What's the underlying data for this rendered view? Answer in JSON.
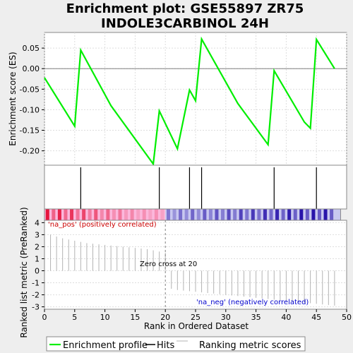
{
  "chart_data": {
    "type": "line",
    "title_lines": [
      "Enrichment plot: GSE55897 ZR75",
      "INDOLE3CARBINOL 24H"
    ],
    "es_panel": {
      "ylabel": "Enrichment score (ES)",
      "yticks": [
        0.05,
        0.0,
        -0.05,
        -0.1,
        -0.15,
        -0.2
      ],
      "ytick_labels": [
        "0.05",
        "0.00",
        "-0.05",
        "-0.10",
        "-0.15",
        "-0.20"
      ],
      "ylim": [
        -0.235,
        0.088
      ],
      "xlim": [
        0,
        50
      ],
      "line_color": "#00ee00",
      "x": [
        0,
        5,
        6,
        11,
        18,
        19,
        22,
        24,
        25,
        26,
        32,
        37,
        38,
        43,
        44,
        45,
        48
      ],
      "y": [
        -0.022,
        -0.14,
        0.045,
        -0.09,
        -0.232,
        -0.103,
        -0.195,
        -0.052,
        -0.078,
        0.072,
        -0.085,
        -0.185,
        -0.005,
        -0.13,
        -0.145,
        0.071,
        0.0
      ]
    },
    "hits": {
      "color": "#000000",
      "positions": [
        6,
        19,
        24,
        26,
        38,
        45
      ]
    },
    "metric_panel": {
      "ylabel": "Ranked list metric (PreRanked)",
      "yticks": [
        4,
        3,
        2,
        1,
        0,
        -1,
        -2,
        -3
      ],
      "ytick_labels": [
        "4",
        "3",
        "2",
        "1",
        "0",
        "-1",
        "-2",
        "-3"
      ],
      "ylim": [
        -3.2,
        4.2
      ],
      "xlabel": "Rank in Ordered Dataset",
      "xticks": [
        0,
        5,
        10,
        15,
        20,
        25,
        30,
        35,
        40,
        45,
        50
      ],
      "xtick_labels": [
        "0",
        "5",
        "10",
        "15",
        "20",
        "25",
        "30",
        "35",
        "40",
        "45",
        "50"
      ],
      "bar_color": "#b3b3b3",
      "values": [
        3.0,
        2.85,
        2.7,
        2.6,
        2.5,
        2.4,
        2.3,
        2.25,
        2.2,
        2.15,
        2.1,
        2.05,
        2.0,
        1.95,
        1.9,
        1.85,
        1.8,
        1.7,
        1.6,
        1.5,
        -1.5,
        -1.6,
        -1.65,
        -1.7,
        -1.75,
        -1.8,
        -1.85,
        -1.9,
        -1.95,
        -2.0,
        -2.05,
        -2.1,
        -2.15,
        -2.2,
        -2.25,
        -2.3,
        -2.35,
        -2.4,
        -2.45,
        -2.5,
        -2.55,
        -2.6,
        -2.65,
        -2.7,
        -2.75,
        -2.8,
        -2.85,
        -2.9
      ],
      "zero_cross": 20,
      "zero_cross_label": "Zero cross at 20",
      "pos_label": "'na_pos' (positively correlated)",
      "neg_label": "'na_neg' (negatively correlated)",
      "pos_color": "#cc0000",
      "neg_color": "#0000cc"
    },
    "legend": {
      "entries": [
        "Enrichment profile",
        "Hits",
        "Ranking metric scores"
      ],
      "colors": [
        "#00ee00",
        "#000000",
        "#b3b3b3"
      ]
    }
  }
}
